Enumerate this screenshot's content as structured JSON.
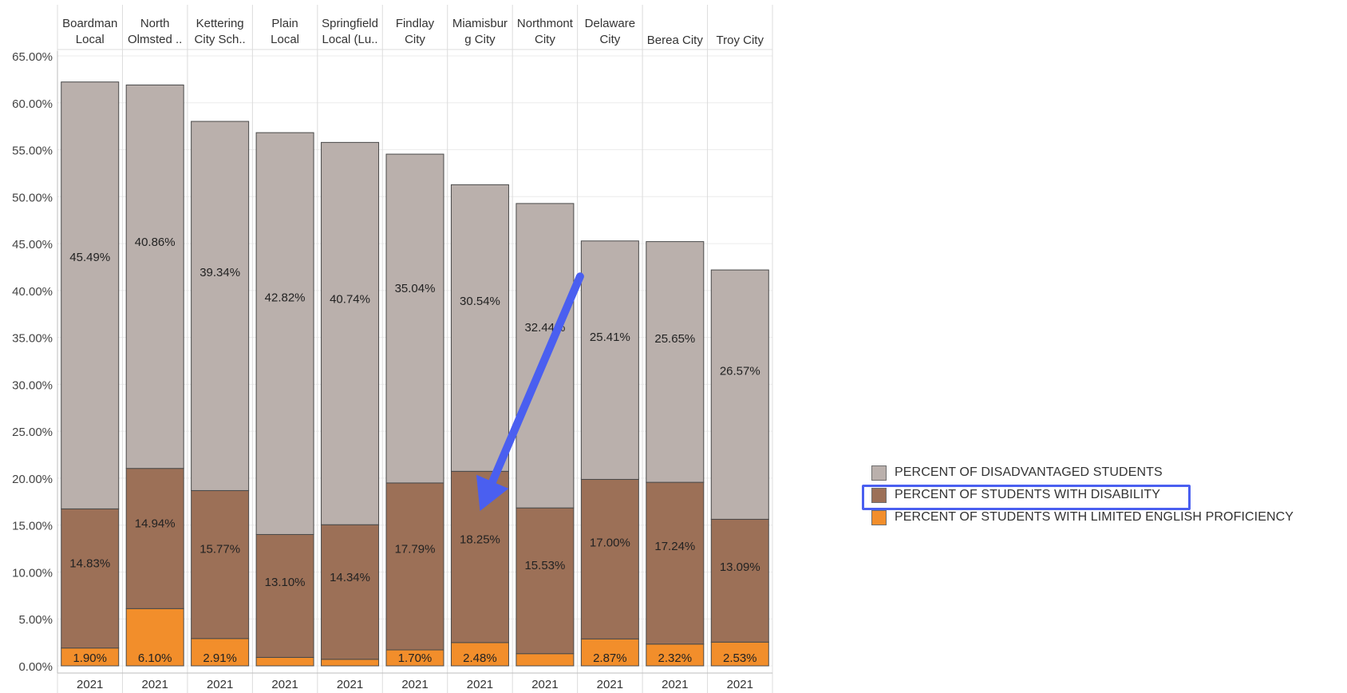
{
  "chart_data": {
    "type": "bar",
    "stacked": true,
    "title": "",
    "xlabel": "",
    "ylabel": "",
    "ylim": [
      0,
      65
    ],
    "yticks": [
      "0.00%",
      "5.00%",
      "10.00%",
      "15.00%",
      "20.00%",
      "25.00%",
      "30.00%",
      "35.00%",
      "40.00%",
      "45.00%",
      "50.00%",
      "55.00%",
      "60.00%",
      "65.00%"
    ],
    "categories": [
      [
        "Boardman",
        "Local"
      ],
      [
        "North",
        "Olmsted .."
      ],
      [
        "Kettering",
        "City Sch.."
      ],
      [
        "Plain",
        "Local"
      ],
      [
        "Springfield",
        "Local (Lu.."
      ],
      [
        "Findlay",
        "City"
      ],
      [
        "Miamisbur",
        "g City"
      ],
      [
        "Northmont",
        "City"
      ],
      [
        "Delaware",
        "City"
      ],
      [
        "Berea City"
      ],
      [
        "Troy City"
      ]
    ],
    "x_sub_labels": [
      "2021",
      "2021",
      "2021",
      "2021",
      "2021",
      "2021",
      "2021",
      "2021",
      "2021",
      "2021",
      "2021"
    ],
    "grid": true,
    "legend_position": "right",
    "series": [
      {
        "name": "PERCENT OF STUDENTS WITH LIMITED ENGLISH PROFICIENCY",
        "color": "#f28e2b",
        "values": [
          1.9,
          6.1,
          2.91,
          0.9,
          0.7,
          1.7,
          2.48,
          1.3,
          2.87,
          2.32,
          2.53
        ],
        "labels": [
          "1.90%",
          "6.10%",
          "2.91%",
          "",
          "",
          "1.70%",
          "2.48%",
          "",
          "2.87%",
          "2.32%",
          "2.53%"
        ]
      },
      {
        "name": "PERCENT OF STUDENTS WITH DISABILITY",
        "color": "#9c7057",
        "values": [
          14.83,
          14.94,
          15.77,
          13.1,
          14.34,
          17.79,
          18.25,
          15.53,
          17.0,
          17.24,
          13.09
        ],
        "labels": [
          "14.83%",
          "14.94%",
          "15.77%",
          "13.10%",
          "14.34%",
          "17.79%",
          "18.25%",
          "15.53%",
          "17.00%",
          "17.24%",
          "13.09%"
        ]
      },
      {
        "name": "PERCENT OF DISADVANTAGED STUDENTS",
        "color": "#bab0ac",
        "values": [
          45.49,
          40.86,
          39.34,
          42.82,
          40.74,
          35.04,
          30.54,
          32.44,
          25.41,
          25.65,
          26.57
        ],
        "labels": [
          "45.49%",
          "40.86%",
          "39.34%",
          "42.82%",
          "40.74%",
          "35.04%",
          "30.54%",
          "32.44%",
          "25.41%",
          "25.65%",
          "26.57%"
        ]
      }
    ],
    "annotations": [
      {
        "type": "arrow",
        "color": "#4a5ff0",
        "from_category": [
          "Northmont",
          "City"
        ],
        "from_value": 41.5,
        "to_category": [
          "Miamisbur",
          "g City"
        ],
        "to_value": 16.5
      },
      {
        "type": "highlight-box",
        "color": "#4a5ff0",
        "target": "legend: PERCENT OF STUDENTS WITH DISABILITY"
      }
    ]
  },
  "legend": {
    "items": [
      {
        "label": "PERCENT OF DISADVANTAGED STUDENTS",
        "color": "#bab0ac"
      },
      {
        "label": "PERCENT OF STUDENTS WITH DISABILITY",
        "color": "#9c7057"
      },
      {
        "label": "PERCENT OF STUDENTS WITH LIMITED ENGLISH PROFICIENCY",
        "color": "#f28e2b"
      }
    ],
    "highlight_color": "#4a5ff0"
  }
}
